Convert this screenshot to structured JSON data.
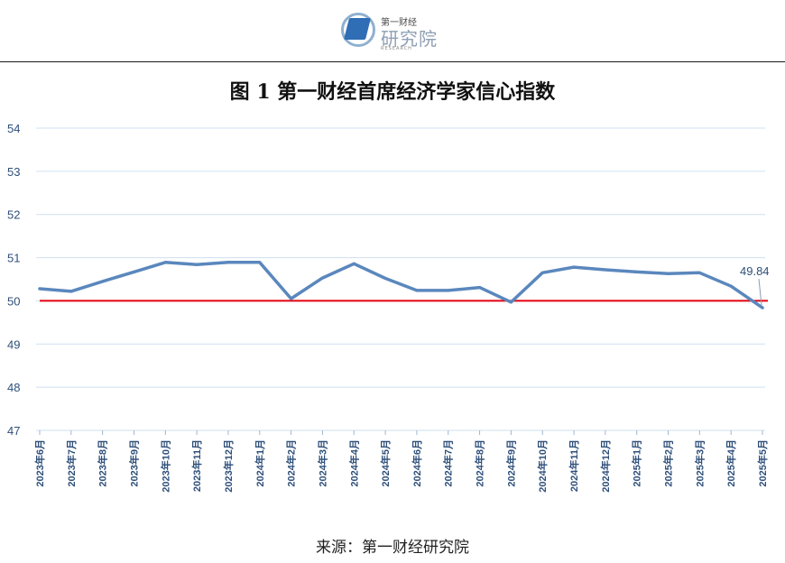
{
  "logo": {
    "small_text": "第一财经",
    "big_text": "研究院",
    "tiny_text": "RESEARCH"
  },
  "title": "图 1  第一财经首席经济学家信心指数",
  "source": "来源：第一财经研究院",
  "colors": {
    "series_line": "#5a87bd",
    "reference_line": "#e3000f",
    "grid": "#cfe0f0",
    "axis_text": "#2e4f7a"
  },
  "chart_data": {
    "type": "line",
    "title": "图 1  第一财经首席经济学家信心指数",
    "xlabel": "",
    "ylabel": "",
    "ylim": [
      47,
      54
    ],
    "yticks": [
      47,
      48,
      49,
      50,
      51,
      52,
      53,
      54
    ],
    "grid": true,
    "categories": [
      "2023年6月",
      "2023年7月",
      "2023年8月",
      "2023年9月",
      "2023年10月",
      "2023年11月",
      "2023年12月",
      "2024年1月",
      "2024年2月",
      "2024年3月",
      "2024年4月",
      "2024年5月",
      "2024年6月",
      "2024年7月",
      "2024年8月",
      "2024年9月",
      "2024年10月",
      "2024年11月",
      "2024年12月",
      "2025年1月",
      "2025年2月",
      "2025年3月",
      "2025年4月",
      "2025年5月"
    ],
    "series": [
      {
        "values": [
          50.28,
          50.22,
          50.45,
          50.67,
          50.89,
          50.84,
          50.89,
          50.89,
          50.05,
          50.53,
          50.86,
          50.52,
          50.24,
          50.24,
          50.31,
          49.97,
          50.65,
          50.78,
          50.72,
          50.67,
          50.63,
          50.65,
          50.34,
          49.84
        ]
      }
    ],
    "reference_line": 50,
    "annotations": [
      {
        "category": "2025年5月",
        "text": "49.84"
      }
    ]
  }
}
